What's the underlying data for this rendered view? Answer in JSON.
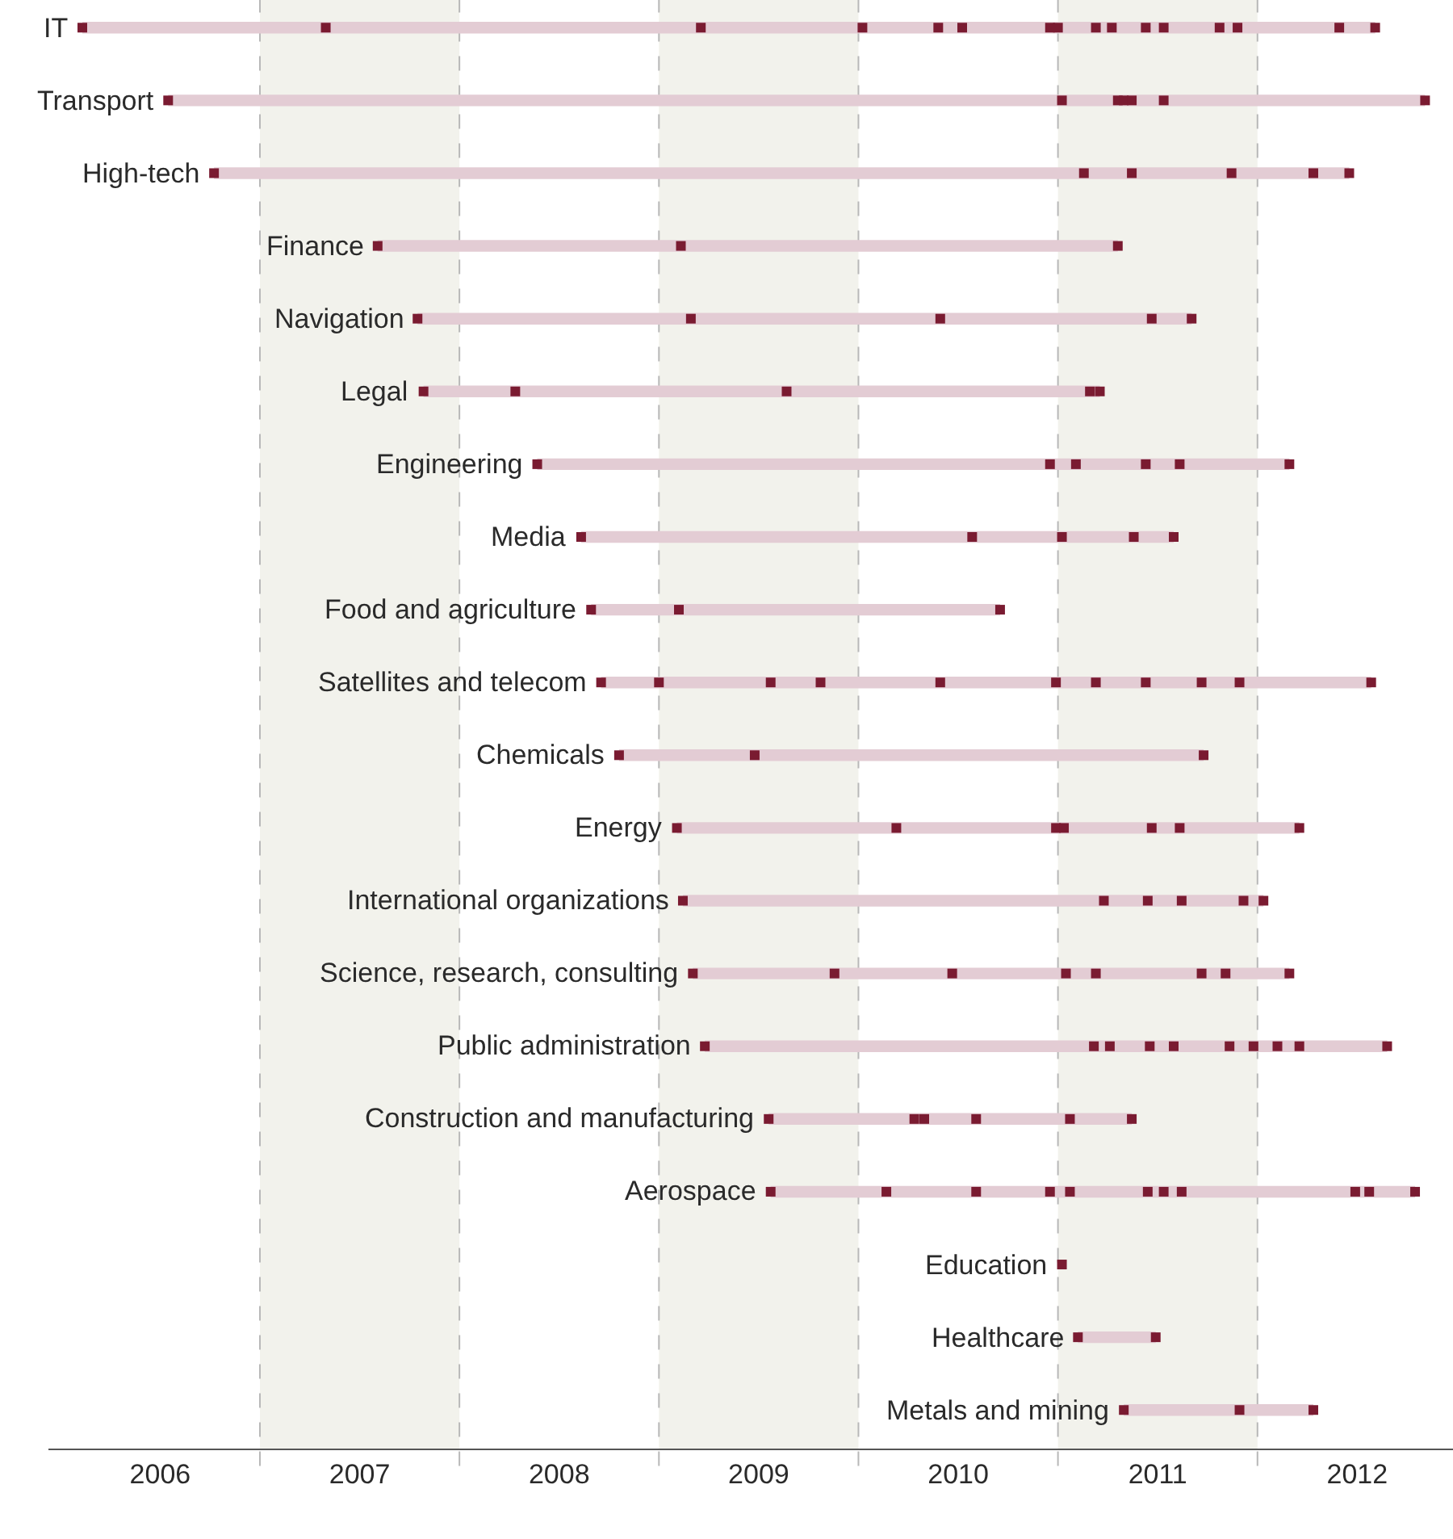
{
  "chart_data": {
    "type": "bar",
    "orientation": "horizontal",
    "categories": [
      "IT",
      "Transport",
      "High-tech",
      "Finance",
      "Navigation",
      "Legal",
      "Engineering",
      "Media",
      "Food and agriculture",
      "Satellites and telecom",
      "Chemicals",
      "Energy",
      "International organizations",
      "Science, research, consulting",
      "Public administration",
      "Construction and manufacturing",
      "Aerospace",
      "Education",
      "Healthcare",
      "Metals and mining"
    ],
    "series": [
      {
        "type": "bar",
        "color": "#e3ccd4",
        "base": [
          2006.11,
          2006.54,
          2006.77,
          2007.59,
          2007.79,
          2007.82,
          2008.39,
          2008.61,
          2008.66,
          2008.71,
          2008.8,
          2009.09,
          2009.12,
          2009.17,
          2009.23,
          2009.55,
          2009.56,
          null,
          2011.1,
          2011.33
        ],
        "values": [
          6.48,
          6.3,
          5.69,
          3.71,
          3.88,
          3.39,
          3.77,
          2.97,
          2.05,
          3.86,
          2.93,
          3.12,
          2.91,
          2.99,
          3.42,
          1.82,
          3.23,
          null,
          0.39,
          0.95
        ]
      },
      {
        "type": "scatter",
        "color": "#7a1b31",
        "marker": "square",
        "x": [
          "IT",
          "IT",
          "IT",
          "IT",
          "IT",
          "IT",
          "IT",
          "IT",
          "IT",
          "IT",
          "IT",
          "IT",
          "IT",
          "IT",
          "IT",
          "IT",
          "Transport",
          "Transport",
          "Transport",
          "Transport",
          "Transport",
          "Transport",
          "Transport",
          "High-tech",
          "High-tech",
          "High-tech",
          "High-tech",
          "High-tech",
          "High-tech",
          "Finance",
          "Finance",
          "Finance",
          "Navigation",
          "Navigation",
          "Navigation",
          "Navigation",
          "Navigation",
          "Legal",
          "Legal",
          "Legal",
          "Legal",
          "Legal",
          "Engineering",
          "Engineering",
          "Engineering",
          "Engineering",
          "Engineering",
          "Engineering",
          "Media",
          "Media",
          "Media",
          "Media",
          "Media",
          "Food and agriculture",
          "Food and agriculture",
          "Food and agriculture",
          "Satellites and telecom",
          "Satellites and telecom",
          "Satellites and telecom",
          "Satellites and telecom",
          "Satellites and telecom",
          "Satellites and telecom",
          "Satellites and telecom",
          "Satellites and telecom",
          "Satellites and telecom",
          "Satellites and telecom",
          "Satellites and telecom",
          "Chemicals",
          "Chemicals",
          "Chemicals",
          "Energy",
          "Energy",
          "Energy",
          "Energy",
          "Energy",
          "Energy",
          "Energy",
          "International organizations",
          "International organizations",
          "International organizations",
          "International organizations",
          "International organizations",
          "International organizations",
          "Science, research, consulting",
          "Science, research, consulting",
          "Science, research, consulting",
          "Science, research, consulting",
          "Science, research, consulting",
          "Science, research, consulting",
          "Science, research, consulting",
          "Science, research, consulting",
          "Public administration",
          "Public administration",
          "Public administration",
          "Public administration",
          "Public administration",
          "Public administration",
          "Public administration",
          "Public administration",
          "Public administration",
          "Public administration",
          "Construction and manufacturing",
          "Construction and manufacturing",
          "Construction and manufacturing",
          "Construction and manufacturing",
          "Construction and manufacturing",
          "Construction and manufacturing",
          "Aerospace",
          "Aerospace",
          "Aerospace",
          "Aerospace",
          "Aerospace",
          "Aerospace",
          "Aerospace",
          "Aerospace",
          "Aerospace",
          "Aerospace",
          "Aerospace",
          "Education",
          "Healthcare",
          "Healthcare",
          "Metals and mining",
          "Metals and mining",
          "Metals and mining"
        ],
        "values": [
          2006.11,
          2007.33,
          2009.21,
          2010.02,
          2010.4,
          2010.52,
          2010.96,
          2011.0,
          2011.19,
          2011.27,
          2011.44,
          2011.53,
          2011.81,
          2011.9,
          2012.41,
          2012.59,
          2006.54,
          2011.02,
          2011.3,
          2011.33,
          2011.37,
          2011.53,
          2012.84,
          2006.77,
          2011.13,
          2011.37,
          2011.87,
          2012.28,
          2012.46,
          2007.59,
          2009.11,
          2011.3,
          2007.79,
          2009.16,
          2010.41,
          2011.47,
          2011.67,
          2007.82,
          2008.28,
          2009.64,
          2011.16,
          2011.21,
          2008.39,
          2010.96,
          2011.09,
          2011.44,
          2011.61,
          2012.16,
          2008.61,
          2010.57,
          2011.02,
          2011.38,
          2011.58,
          2008.66,
          2009.1,
          2010.71,
          2008.71,
          2009.0,
          2009.56,
          2009.81,
          2010.41,
          2010.99,
          2011.19,
          2011.44,
          2011.72,
          2011.91,
          2012.57,
          2008.8,
          2009.48,
          2011.73,
          2009.09,
          2010.19,
          2010.99,
          2011.03,
          2011.47,
          2011.61,
          2012.21,
          2009.12,
          2011.23,
          2011.45,
          2011.62,
          2011.93,
          2012.03,
          2009.17,
          2009.88,
          2010.47,
          2011.04,
          2011.19,
          2011.72,
          2011.84,
          2012.16,
          2009.23,
          2011.18,
          2011.26,
          2011.46,
          2011.58,
          2011.86,
          2011.98,
          2012.1,
          2012.21,
          2012.65,
          2009.55,
          2010.28,
          2010.33,
          2010.59,
          2011.06,
          2011.37,
          2009.56,
          2010.14,
          2010.59,
          2010.96,
          2011.06,
          2011.45,
          2011.53,
          2011.62,
          2012.49,
          2012.56,
          2012.79,
          2011.02,
          2011.1,
          2011.49,
          2011.33,
          2011.91,
          2012.28
        ]
      }
    ],
    "xlim": [
      2005.94,
      2012.98
    ],
    "xticks": [
      {
        "value": 2006.5,
        "label": "2006"
      },
      {
        "value": 2007.5,
        "label": "2007"
      },
      {
        "value": 2008.5,
        "label": "2008"
      },
      {
        "value": 2009.5,
        "label": "2009"
      },
      {
        "value": 2010.5,
        "label": "2010"
      },
      {
        "value": 2011.5,
        "label": "2011"
      },
      {
        "value": 2012.5,
        "label": "2012"
      }
    ],
    "bands": [
      {
        "axis": "x",
        "from": 2007,
        "to": 2008,
        "color": "#f2f2ec"
      },
      {
        "axis": "x",
        "from": 2009,
        "to": 2010,
        "color": "#f2f2ec"
      },
      {
        "axis": "x",
        "from": 2011,
        "to": 2012,
        "color": "#f2f2ec"
      }
    ],
    "ref_lines": [
      {
        "axis": "x",
        "value": 2007,
        "color": "#b8b8b8",
        "line_style": "dashed"
      },
      {
        "axis": "x",
        "value": 2008,
        "color": "#b8b8b8",
        "line_style": "dashed"
      },
      {
        "axis": "x",
        "value": 2009,
        "color": "#b8b8b8",
        "line_style": "dashed"
      },
      {
        "axis": "x",
        "value": 2010,
        "color": "#b8b8b8",
        "line_style": "dashed"
      },
      {
        "axis": "x",
        "value": 2011,
        "color": "#b8b8b8",
        "line_style": "dashed"
      },
      {
        "axis": "x",
        "value": 2012,
        "color": "#b8b8b8",
        "line_style": "dashed"
      }
    ],
    "grid": false,
    "legend": false,
    "tick_labels": "x"
  }
}
